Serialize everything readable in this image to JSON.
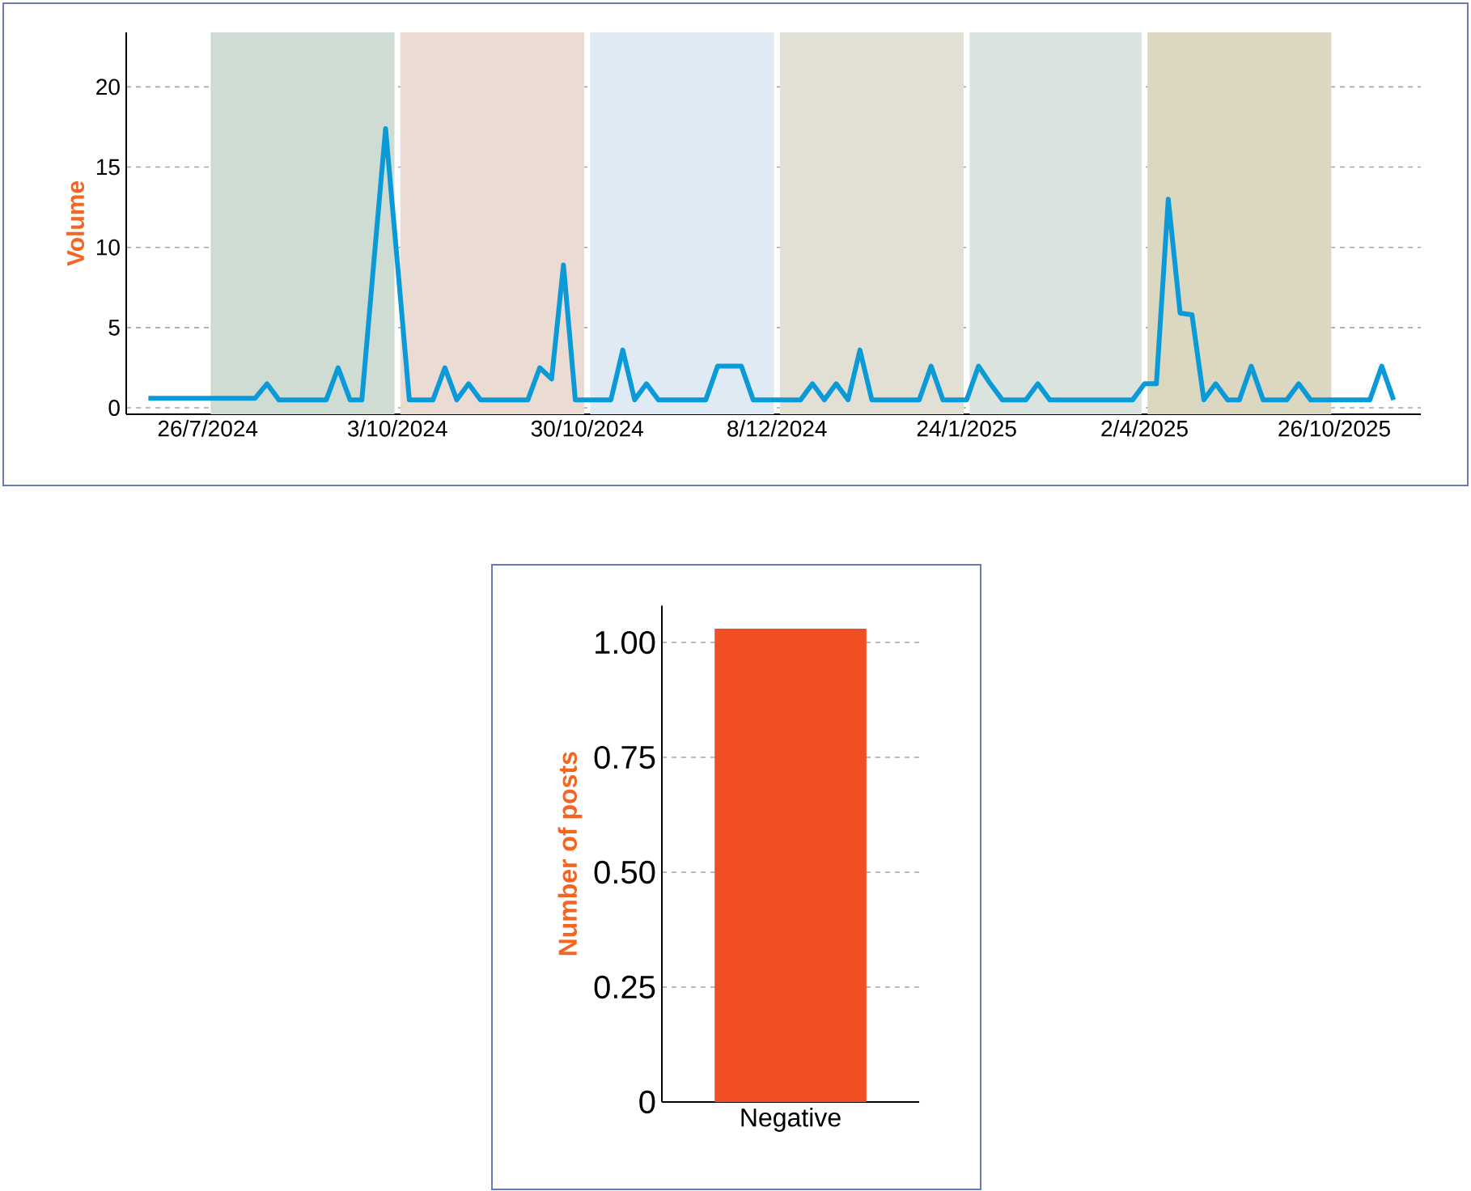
{
  "chart_data": [
    {
      "type": "line",
      "ylabel": "Volume",
      "categories": [
        null,
        null,
        null,
        null,
        null,
        "26/7/2024",
        null,
        null,
        null,
        null,
        null,
        null,
        null,
        null,
        null,
        null,
        null,
        null,
        null,
        null,
        null,
        "3/10/2024",
        null,
        null,
        null,
        null,
        null,
        null,
        null,
        null,
        null,
        null,
        null,
        null,
        null,
        null,
        null,
        "30/10/2024",
        null,
        null,
        null,
        null,
        null,
        null,
        null,
        null,
        null,
        null,
        null,
        null,
        null,
        null,
        null,
        "8/12/2024",
        null,
        null,
        null,
        null,
        null,
        null,
        null,
        null,
        null,
        null,
        null,
        null,
        null,
        null,
        null,
        "24/1/2025",
        null,
        null,
        null,
        null,
        null,
        null,
        null,
        null,
        null,
        null,
        null,
        null,
        null,
        null,
        "2/4/2025",
        null,
        null,
        null,
        null,
        null,
        null,
        null,
        null,
        null,
        null,
        null,
        null,
        null,
        null,
        null,
        "26/10/2025",
        null,
        null,
        null,
        null,
        null
      ],
      "series": [
        {
          "color": "#0a9ad8",
          "values": [
            0.6,
            0.6,
            0.6,
            0.6,
            0.6,
            0.6,
            0.6,
            0.6,
            0.6,
            0.6,
            1.5,
            0.5,
            0.5,
            0.5,
            0.5,
            0.5,
            2.5,
            0.5,
            0.5,
            9,
            17.4,
            9,
            0.5,
            0.5,
            0.5,
            2.5,
            0.5,
            1.5,
            0.5,
            0.5,
            0.5,
            0.5,
            0.5,
            2.5,
            1.8,
            8.9,
            0.5,
            0.5,
            0.5,
            0.5,
            3.6,
            0.5,
            1.5,
            0.5,
            0.5,
            0.5,
            0.5,
            0.5,
            2.6,
            2.6,
            2.6,
            0.5,
            0.5,
            0.5,
            0.5,
            0.5,
            1.5,
            0.5,
            1.5,
            0.5,
            3.6,
            0.5,
            0.5,
            0.5,
            0.5,
            0.5,
            2.6,
            0.5,
            0.5,
            0.5,
            2.6,
            1.5,
            0.5,
            0.5,
            0.5,
            1.5,
            0.5,
            0.5,
            0.5,
            0.5,
            0.5,
            0.5,
            0.5,
            0.5,
            1.5,
            1.5,
            13,
            5.9,
            5.8,
            0.5,
            1.5,
            0.5,
            0.5,
            2.6,
            0.5,
            0.5,
            0.5,
            1.5,
            0.5,
            0.5,
            0.5,
            0.5,
            0.5,
            0.5,
            2.6,
            0.5
          ]
        }
      ],
      "ylim": [
        -0.4,
        23.4
      ],
      "yticks": [
        0,
        5,
        10,
        15,
        20
      ],
      "grid": "y",
      "bands": [
        {
          "axis": "x",
          "from": "26/7/2024",
          "to": "3/10/2024",
          "color": "#cfdcd4"
        },
        {
          "axis": "x",
          "from": "3/10/2024",
          "to": "30/10/2024",
          "color": "#eadcd3"
        },
        {
          "axis": "x",
          "from": "30/10/2024",
          "to": "8/12/2024",
          "color": "#e0eaf4"
        },
        {
          "axis": "x",
          "from": "8/12/2024",
          "to": "24/1/2025",
          "color": "#e2e0d4"
        },
        {
          "axis": "x",
          "from": "24/1/2025",
          "to": "2/4/2025",
          "color": "#dbe3de"
        },
        {
          "axis": "x",
          "from": "2/4/2025",
          "to": "26/10/2025",
          "color": "#dcd7c0"
        }
      ]
    },
    {
      "type": "bar",
      "ylabel": "Number of posts",
      "categories": [
        "Negative"
      ],
      "values": [
        1.03
      ],
      "color": "#f04e23",
      "ylim": [
        0,
        1.08
      ],
      "yticks": [
        0,
        0.25,
        {
          "value": 0.5,
          "label": "0.50"
        },
        0.75,
        {
          "value": 1,
          "label": "1.00"
        }
      ],
      "grid": "y"
    }
  ]
}
